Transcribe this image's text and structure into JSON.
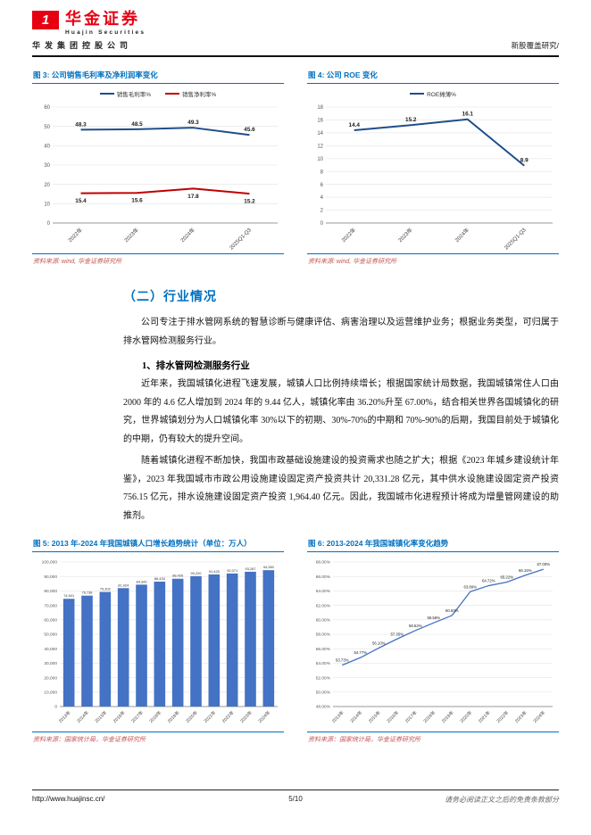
{
  "header": {
    "brand_cn": "华金证券",
    "brand_en": "Huajin Securities",
    "brand_sub": "华发集团控股公司",
    "report_type": "新股覆盖研究/"
  },
  "section": {
    "heading": "（二）行业情况",
    "para1": "公司专注于排水管网系统的智慧诊断与健康评估、病害治理以及运营维护业务；根据业务类型，可归属于排水管网检测服务行业。",
    "sub1": "1、排水管网检测服务行业",
    "para2": "近年来，我国城镇化进程飞速发展，城镇人口比例持续增长；根据国家统计局数据，我国城镇常住人口由 2000 年的 4.6 亿人增加到 2024 年的 9.44 亿人，城镇化率由 36.20%升至 67.00%，结合相关世界各国城镇化的研究，世界城镇划分为人口城镇化率 30%以下的初期、30%-70%的中期和 70%-90%的后期，我国目前处于城镇化的中期，仍有较大的提升空间。",
    "para3": "随着城镇化进程不断加快，我国市政基础设施建设的投资需求也随之扩大；根据《2023 年城乡建设统计年鉴》，2023 年我国城市市政公用设施建设固定资产投资共计 20,331.28 亿元，其中供水设施建设固定资产投资 756.15 亿元，排水设施建设固定资产投资 1,964.40 亿元。因此，我国城市化进程预计将成为增量管网建设的助推剂。"
  },
  "footer": {
    "url": "http://www.huajinsc.cn/",
    "page": "5/10",
    "disclaimer": "请务必阅读正文之后的免责条款部分"
  },
  "chart_data": [
    {
      "id": "fig3",
      "type": "line",
      "title": "图 3: 公司销售毛利率及净利润率变化",
      "source": "资料来源: wind, 华金证券研究所",
      "categories": [
        "2022年",
        "2023年",
        "2024年",
        "2025Q1-Q3"
      ],
      "series": [
        {
          "name": "销售毛利率%",
          "color": "#1f4e8c",
          "values": [
            48.3,
            48.5,
            49.3,
            45.6
          ],
          "labels": [
            "48.3",
            "48.5",
            "49.3",
            "45.6"
          ],
          "label_pos": "above"
        },
        {
          "name": "销售净利率%",
          "color": "#c00000",
          "values": [
            15.4,
            15.6,
            17.8,
            15.2
          ],
          "labels": [
            "15.4",
            "15.6",
            "17.8",
            "15.2"
          ],
          "label_pos": "below"
        }
      ],
      "ylim": [
        0,
        60
      ],
      "yticks": [
        0,
        10,
        20,
        30,
        40,
        50,
        60
      ],
      "ytick_labels": [
        "0",
        "10",
        "20",
        "30",
        "40",
        "50",
        "60"
      ],
      "legend": "top",
      "grid": true
    },
    {
      "id": "fig4",
      "type": "line",
      "title": "图 4: 公司 ROE 变化",
      "source": "资料来源: wind, 华金证券研究所",
      "categories": [
        "2022年",
        "2023年",
        "2024年",
        "2025Q1-Q3"
      ],
      "series": [
        {
          "name": "ROE摊薄%",
          "color": "#1f4e8c",
          "values": [
            14.4,
            15.2,
            16.1,
            8.9
          ],
          "labels": [
            "14.4",
            "15.2",
            "16.1",
            "8.9"
          ],
          "label_pos": "above"
        }
      ],
      "ylim": [
        0,
        18
      ],
      "yticks": [
        0,
        2,
        4,
        6,
        8,
        10,
        12,
        14,
        16,
        18
      ],
      "ytick_labels": [
        "0",
        "2",
        "4",
        "6",
        "8",
        "10",
        "12",
        "14",
        "16",
        "18"
      ],
      "legend": "top",
      "grid": true
    },
    {
      "id": "fig5",
      "type": "bar",
      "title": "图 5: 2013 年-2024 年我国城镇人口增长趋势统计（单位：万人）",
      "source": "资料来源：国家统计局，华金证券研究所",
      "categories": [
        "2013年",
        "2014年",
        "2015年",
        "2016年",
        "2017年",
        "2018年",
        "2019年",
        "2020年",
        "2021年",
        "2022年",
        "2023年",
        "2024年"
      ],
      "values": [
        74541,
        76738,
        79302,
        81924,
        84343,
        86433,
        88426,
        90220,
        91425,
        92071,
        93267,
        94350
      ],
      "labels": [
        "74,541",
        "76,738",
        "79,302",
        "81,924",
        "84,343",
        "86,433",
        "88,426",
        "90,220",
        "91,425",
        "92,071",
        "93,267",
        "94,350"
      ],
      "bar_color": "#4472c4",
      "ylim": [
        0,
        100000
      ],
      "yticks": [
        0,
        10000,
        20000,
        30000,
        40000,
        50000,
        60000,
        70000,
        80000,
        90000,
        100000
      ],
      "ytick_labels": [
        "0",
        "10,000",
        "20,000",
        "30,000",
        "40,000",
        "50,000",
        "60,000",
        "70,000",
        "80,000",
        "90,000",
        "100,000"
      ],
      "legend": "none",
      "grid": true
    },
    {
      "id": "fig6",
      "type": "line",
      "title": "图 6: 2013-2024 年我国城镇化率变化趋势",
      "source": "资料来源：国家统计局，华金证券研究所",
      "categories": [
        "2013年",
        "2014年",
        "2015年",
        "2016年",
        "2017年",
        "2018年",
        "2019年",
        "2020年",
        "2021年",
        "2022年",
        "2023年",
        "2024年"
      ],
      "series": [
        {
          "name": "城镇化率",
          "color": "#4472c4",
          "values": [
            53.73,
            54.77,
            56.1,
            57.35,
            58.52,
            59.58,
            60.6,
            63.89,
            64.72,
            65.22,
            66.16,
            67.0
          ],
          "labels": [
            "53.73%",
            "54.77%",
            "56.10%",
            "57.35%",
            "58.52%",
            "59.58%",
            "60.60%",
            "63.89%",
            "64.72%",
            "65.22%",
            "66.16%",
            "67.00%"
          ],
          "label_pos": "above"
        }
      ],
      "ylim": [
        48,
        68
      ],
      "yticks": [
        48,
        50,
        52,
        54,
        56,
        58,
        60,
        62,
        64,
        66,
        68
      ],
      "ytick_labels": [
        "48.00%",
        "50.00%",
        "52.00%",
        "54.00%",
        "56.00%",
        "58.00%",
        "60.00%",
        "62.00%",
        "64.00%",
        "66.00%",
        "68.00%"
      ],
      "legend": "none",
      "grid": true
    }
  ]
}
